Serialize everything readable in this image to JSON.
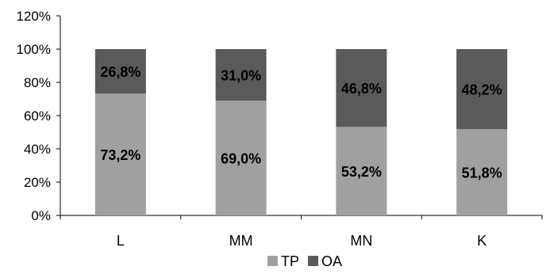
{
  "chart_data": {
    "type": "bar",
    "stacked": true,
    "categories": [
      "L",
      "MM",
      "MN",
      "K"
    ],
    "series": [
      {
        "name": "TP",
        "values": [
          73.2,
          69.0,
          53.2,
          51.8
        ],
        "labels": [
          "73,2%",
          "69,0%",
          "53,2%",
          "51,8%"
        ],
        "color": "#a0a0a0"
      },
      {
        "name": "OA",
        "values": [
          26.8,
          31.0,
          46.8,
          48.2
        ],
        "labels": [
          "26,8%",
          "31,0%",
          "46,8%",
          "48,2%"
        ],
        "color": "#5a5a5a"
      }
    ],
    "y_ticks": [
      "0%",
      "20%",
      "40%",
      "60%",
      "80%",
      "100%",
      "120%"
    ],
    "ylim": [
      0,
      120
    ],
    "grid": false,
    "legend_position": "bottom"
  }
}
